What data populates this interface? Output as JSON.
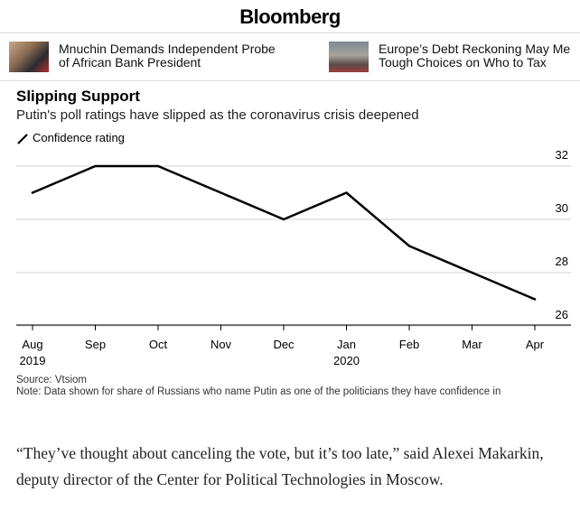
{
  "brand": "Bloomberg",
  "headlines": [
    {
      "text_line1": "Mnuchin Demands Independent Probe",
      "text_line2": "of African Bank President"
    },
    {
      "text_line1": "Europe’s Debt Reckoning May Me",
      "text_line2": "Tough Choices on Who to Tax"
    }
  ],
  "chart_data": {
    "type": "line",
    "title": "Slipping Support",
    "subtitle": "Putin's poll ratings have slipped as the coronavirus crisis deepened",
    "series": [
      {
        "name": "Confidence rating",
        "color": "#000000",
        "values": [
          31,
          32,
          32,
          31,
          30,
          31,
          29,
          28,
          27
        ]
      }
    ],
    "categories": [
      "Aug 2019",
      "Sep",
      "Oct",
      "Nov",
      "Dec",
      "Jan 2020",
      "Feb",
      "Mar",
      "Apr"
    ],
    "tick_labels": [
      {
        "line1": "Aug",
        "line2": "2019"
      },
      {
        "line1": "Sep",
        "line2": ""
      },
      {
        "line1": "Oct",
        "line2": ""
      },
      {
        "line1": "Nov",
        "line2": ""
      },
      {
        "line1": "Dec",
        "line2": ""
      },
      {
        "line1": "Jan",
        "line2": "2020"
      },
      {
        "line1": "Feb",
        "line2": ""
      },
      {
        "line1": "Mar",
        "line2": ""
      },
      {
        "line1": "Apr",
        "line2": ""
      }
    ],
    "yticks": [
      26,
      28,
      30,
      32
    ],
    "ylim": [
      25.5,
      32.5
    ],
    "y_axis_side": "right",
    "grid": true,
    "legend_position": "top-left"
  },
  "source_line": "Source: Vtsiom",
  "note_line": "Note: Data shown for share of Russians who name Putin as one of the politicians they have confidence in",
  "quote": "“They’ve thought about canceling the vote, but it’s too late,” said Alexei Makarkin, deputy director of the Center for Political Technologies in Moscow."
}
